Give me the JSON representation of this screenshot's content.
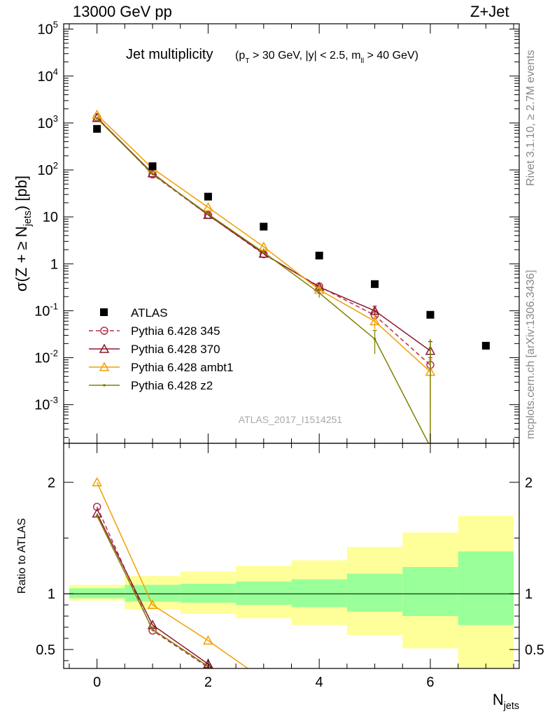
{
  "header": {
    "energy_label": "13000 GeV pp",
    "process_label": "Z+Jet"
  },
  "side_labels": {
    "rivet": "Rivet 3.1.10, ≥ 2.7M events",
    "source": "mcplots.cern.ch [arXiv:1306.3436]"
  },
  "chart_data": [
    {
      "type": "line",
      "panel": "main",
      "title": "Jet multiplicity",
      "title_cuts": "(p_T > 30 GeV, |y| < 2.5, m_ll > 40 GeV)",
      "ylabel": "σ(Z + ≥ N_jets) [pb]",
      "yscale": "log",
      "ylim": [
        0.00015,
        130000
      ],
      "xlim": [
        -0.6,
        7.6
      ],
      "y_tick_labels": [
        "10^-3",
        "10^-2",
        "10^-1",
        "1",
        "10",
        "10^2",
        "10^3",
        "10^4",
        "10^5"
      ],
      "watermark": "ATLAS_2017_I1514251",
      "legend_position": "bottom-left",
      "data_series": {
        "name": "ATLAS",
        "x": [
          0,
          1,
          2,
          3,
          4,
          5,
          6,
          7
        ],
        "y": [
          750,
          120,
          27,
          6.2,
          1.5,
          0.37,
          0.082,
          0.018
        ]
      },
      "series": [
        {
          "name": "Pythia 6.428 345",
          "color": "#b03050",
          "marker": "open-circle",
          "dash": true,
          "x": [
            0,
            1,
            2,
            3,
            4,
            5,
            6
          ],
          "y": [
            1320,
            80,
            11,
            1.6,
            0.33,
            0.08,
            0.007
          ],
          "yerr": [
            0,
            0,
            0,
            0,
            0,
            0.02,
            0.003
          ]
        },
        {
          "name": "Pythia 6.428 370",
          "color": "#8b1a2b",
          "marker": "open-triangle",
          "dash": false,
          "x": [
            0,
            1,
            2,
            3,
            4,
            5,
            6
          ],
          "y": [
            1280,
            85,
            11,
            1.65,
            0.32,
            0.1,
            0.014
          ],
          "yerr": [
            0,
            0,
            0,
            0,
            0.03,
            0.025,
            0.008
          ]
        },
        {
          "name": "Pythia 6.428 ambt1",
          "color": "#f0a000",
          "marker": "open-triangle",
          "dash": false,
          "x": [
            0,
            1,
            2,
            3,
            4,
            5,
            6
          ],
          "y": [
            1500,
            108,
            16,
            2.3,
            0.28,
            0.06,
            0.005
          ],
          "yerr": [
            0,
            0,
            0,
            0,
            0.03,
            0.02,
            0.004
          ]
        },
        {
          "name": "Pythia 6.428 z2",
          "color": "#808000",
          "marker": "dot",
          "dash": false,
          "x": [
            0,
            1,
            2,
            3,
            4,
            5,
            6
          ],
          "y": [
            1250,
            82,
            11.5,
            1.75,
            0.24,
            0.025,
            0.0001
          ],
          "yerr": [
            0,
            0,
            0,
            0,
            0.05,
            0.013,
            0
          ]
        }
      ]
    },
    {
      "type": "line",
      "panel": "ratio",
      "ylabel": "Ratio to ATLAS",
      "xlabel": "N_jets",
      "ylim": [
        0.33,
        2.35
      ],
      "xlim": [
        -0.6,
        7.6
      ],
      "y_tick_labels": [
        "0.5",
        "1",
        "2"
      ],
      "x_tick_labels": [
        "0",
        "2",
        "4",
        "6"
      ],
      "x_ticks": [
        0,
        2,
        4,
        6
      ],
      "bins": [
        [
          -0.5,
          0.5
        ],
        [
          0.5,
          1.5
        ],
        [
          1.5,
          2.5
        ],
        [
          2.5,
          3.5
        ],
        [
          3.5,
          4.5
        ],
        [
          4.5,
          5.5
        ],
        [
          5.5,
          6.5
        ],
        [
          6.5,
          7.5
        ]
      ],
      "inner_band": [
        [
          0.96,
          1.05
        ],
        [
          0.93,
          1.08
        ],
        [
          0.92,
          1.09
        ],
        [
          0.9,
          1.11
        ],
        [
          0.88,
          1.13
        ],
        [
          0.84,
          1.18
        ],
        [
          0.8,
          1.24
        ],
        [
          0.72,
          1.38
        ]
      ],
      "outer_band": [
        [
          0.94,
          1.08
        ],
        [
          0.86,
          1.16
        ],
        [
          0.82,
          1.2
        ],
        [
          0.78,
          1.25
        ],
        [
          0.72,
          1.3
        ],
        [
          0.63,
          1.42
        ],
        [
          0.51,
          1.55
        ],
        [
          0.33,
          1.7
        ]
      ],
      "series": [
        {
          "name": "Pythia 6.428 345",
          "x": [
            0,
            1,
            2,
            2.3
          ],
          "y": [
            1.78,
            0.67,
            0.34,
            0.2
          ]
        },
        {
          "name": "Pythia 6.428 370",
          "x": [
            0,
            1,
            2,
            2.3
          ],
          "y": [
            1.72,
            0.72,
            0.37,
            0.2
          ]
        },
        {
          "name": "Pythia 6.428 ambt1",
          "x": [
            0,
            1,
            2,
            2.8
          ],
          "y": [
            2.0,
            0.9,
            0.58,
            0.3
          ]
        },
        {
          "name": "Pythia 6.428 z2",
          "x": [
            0,
            1,
            2,
            2.3
          ],
          "y": [
            1.7,
            0.68,
            0.35,
            0.2
          ]
        }
      ]
    }
  ]
}
